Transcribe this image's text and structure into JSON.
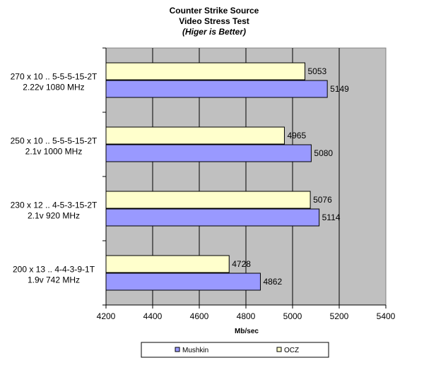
{
  "chart_data": {
    "type": "bar",
    "orientation": "horizontal",
    "title": "Counter Strike Source",
    "subtitle": "Video Stress Test",
    "note": "(Higer is Better)",
    "xlabel": "Mb/sec",
    "ylabel": "",
    "xlim": [
      4200,
      5400
    ],
    "xticks": [
      4200,
      4400,
      4600,
      4800,
      5000,
      5200,
      5400
    ],
    "grid": true,
    "legend_position": "bottom",
    "categories": [
      {
        "line1": "270 x 10 .. 5-5-5-15-2T",
        "line2": "2.22v  1080 MHz"
      },
      {
        "line1": "250 x 10 .. 5-5-5-15-2T",
        "line2": "2.1v  1000 MHz"
      },
      {
        "line1": "230 x 12 .. 4-5-3-15-2T",
        "line2": "2.1v  920 MHz"
      },
      {
        "line1": "200 x 13 .. 4-4-3-9-1T",
        "line2": "1.9v  742 MHz"
      }
    ],
    "series": [
      {
        "name": "Mushkin",
        "color": "#9999ff",
        "values": [
          5149,
          5080,
          5114,
          4862
        ]
      },
      {
        "name": "OCZ",
        "color": "#ffffcc",
        "values": [
          5053,
          4965,
          5076,
          4728
        ]
      }
    ],
    "legend_order": [
      "Mushkin",
      "OCZ"
    ],
    "plot_background": "#c0c0c0"
  }
}
